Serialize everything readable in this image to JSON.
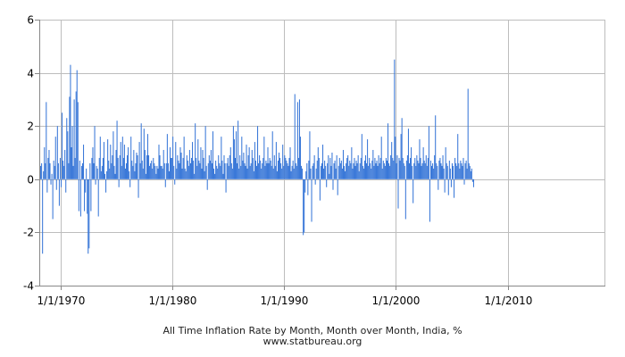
{
  "chart_data": {
    "type": "bar",
    "title": "All Time Inflation Rate by Month, Month over Month, India, %",
    "source": "www.statbureau.org",
    "xlabel": "",
    "ylabel": "",
    "ylim": [
      -4,
      6
    ],
    "yticks": [
      -4,
      -2,
      0,
      2,
      4,
      6
    ],
    "x_range": [
      "1968-02",
      "2018-10"
    ],
    "xticks": [
      {
        "date": "1970-01",
        "label": "1/1/1970"
      },
      {
        "date": "1980-01",
        "label": "1/1/1980"
      },
      {
        "date": "1990-01",
        "label": "1/1/1990"
      },
      {
        "date": "2000-01",
        "label": "1/1/2000"
      },
      {
        "date": "2010-01",
        "label": "1/1/2010"
      }
    ],
    "grid": true,
    "bar_color": "#3a78d8",
    "axis_color": "#888888",
    "grid_color": "#bdbdbd",
    "series": [
      {
        "start": "1968-03",
        "values": [
          0.5,
          0.6,
          -2.8,
          0.3,
          1.2,
          0.6,
          2.9,
          -0.5,
          0.8,
          1.1,
          0.6,
          -0.2,
          0.2,
          -1.5,
          0.7,
          0.5,
          1.6,
          -0.4,
          2.0,
          0.6,
          -1.0,
          0.8,
          -0.3,
          2.5,
          0.7,
          0.5,
          1.1,
          -0.5,
          2.3,
          1.8,
          0.6,
          3.1,
          4.3,
          1.2,
          2.0,
          0.5,
          3.0,
          0.8,
          3.3,
          4.1,
          2.9,
          -1.2,
          0.7,
          -1.4,
          0.5,
          0.6,
          1.3,
          -1.2,
          -0.5,
          0.4,
          -1.3,
          -2.8,
          -2.6,
          0.6,
          -1.2,
          0.8,
          1.2,
          0.6,
          2.0,
          -0.2,
          0.5,
          0.4,
          -1.4,
          0.8,
          1.6,
          0.3,
          0.5,
          0.8,
          1.4,
          0.2,
          -0.5,
          0.3,
          1.5,
          0.7,
          0.4,
          1.3,
          0.6,
          0.9,
          1.8,
          0.5,
          0.2,
          1.1,
          2.2,
          0.8,
          -0.3,
          0.9,
          1.4,
          0.5,
          1.6,
          0.8,
          1.3,
          0.4,
          0.6,
          0.9,
          1.2,
          0.3,
          -0.3,
          1.6,
          0.7,
          0.5,
          1.1,
          0.3,
          0.6,
          1.0,
          0.9,
          -0.7,
          1.4,
          0.6,
          2.1,
          0.7,
          0.4,
          1.9,
          1.1,
          0.2,
          0.9,
          1.7,
          0.9,
          0.5,
          0.6,
          0.7,
          0.4,
          0.8,
          0.6,
          0.5,
          0.2,
          0.5,
          0.4,
          1.3,
          0.9,
          0.5,
          0.5,
          0.4,
          1.1,
          0.6,
          -0.3,
          0.6,
          1.7,
          0.6,
          0.3,
          1.2,
          0.8,
          0.8,
          1.6,
          0.5,
          -0.2,
          1.4,
          0.4,
          0.9,
          0.7,
          0.6,
          1.2,
          1.0,
          0.4,
          0.8,
          1.6,
          0.4,
          0.3,
          0.9,
          0.7,
          0.5,
          1.1,
          0.6,
          0.8,
          1.4,
          0.7,
          0.2,
          2.1,
          0.8,
          0.5,
          1.5,
          0.7,
          0.6,
          1.2,
          0.4,
          1.1,
          0.8,
          0.3,
          2.0,
          0.5,
          -0.4,
          0.6,
          0.9,
          0.7,
          1.1,
          0.6,
          1.8,
          0.4,
          0.2,
          0.7,
          0.5,
          0.4,
          0.9,
          0.6,
          0.5,
          1.6,
          0.7,
          0.2,
          0.9,
          0.6,
          -0.5,
          0.6,
          0.8,
          0.5,
          0.9,
          1.2,
          0.6,
          0.4,
          2.0,
          1.5,
          0.8,
          1.8,
          0.6,
          2.2,
          0.4,
          0.9,
          0.5,
          1.6,
          0.7,
          1.0,
          0.6,
          0.5,
          1.3,
          0.4,
          0.9,
          1.2,
          0.5,
          0.6,
          1.1,
          0.8,
          0.3,
          1.4,
          0.7,
          0.5,
          2.0,
          0.6,
          0.9,
          0.7,
          0.4,
          0.6,
          0.8,
          1.6,
          0.5,
          0.7,
          0.6,
          1.2,
          0.6,
          0.8,
          0.7,
          0.5,
          1.8,
          0.4,
          0.9,
          0.5,
          1.4,
          0.3,
          0.7,
          1.0,
          0.8,
          0.6,
          0.4,
          1.3,
          0.5,
          0.9,
          0.8,
          0.7,
          0.6,
          0.5,
          0.8,
          1.2,
          0.3,
          0.5,
          0.7,
          0.4,
          3.2,
          0.6,
          0.5,
          2.9,
          0.8,
          3.0,
          1.6,
          0.5,
          0.4,
          -2.1,
          -2.0,
          -0.5,
          0.3,
          0.6,
          -0.6,
          0.7,
          1.8,
          0.4,
          -1.6,
          0.5,
          0.6,
          0.9,
          -0.2,
          0.4,
          0.7,
          1.2,
          0.8,
          -0.8,
          0.5,
          0.6,
          1.3,
          0.4,
          0.7,
          0.5,
          -0.3,
          0.6,
          0.9,
          0.2,
          0.8,
          0.5,
          1.0,
          -0.4,
          0.6,
          0.7,
          0.4,
          0.9,
          -0.6,
          0.5,
          0.8,
          0.6,
          0.7,
          0.4,
          1.1,
          0.5,
          0.3,
          0.6,
          0.8,
          0.9,
          0.5,
          0.7,
          0.6,
          1.2,
          0.4,
          0.6,
          0.8,
          0.5,
          0.7,
          0.6,
          0.9,
          0.3,
          0.6,
          0.8,
          1.7,
          0.5,
          0.4,
          0.7,
          0.9,
          0.6,
          1.5,
          0.5,
          0.8,
          0.6,
          0.4,
          0.7,
          1.1,
          0.5,
          0.8,
          0.6,
          0.7,
          0.5,
          0.9,
          0.6,
          0.8,
          1.6,
          0.4,
          0.7,
          0.6,
          0.5,
          0.8,
          0.7,
          2.1,
          0.6,
          0.5,
          0.9,
          1.4,
          0.8,
          0.7,
          4.5,
          1.6,
          0.6,
          0.9,
          -1.1,
          0.8,
          0.7,
          1.7,
          2.3,
          0.8,
          0.6,
          0.5,
          -1.5,
          0.7,
          0.9,
          1.9,
          0.6,
          0.8,
          1.2,
          0.5,
          -0.9,
          0.6,
          0.8,
          0.5,
          0.9,
          0.7,
          0.6,
          1.5,
          0.8,
          0.5,
          0.6,
          1.2,
          0.7,
          0.6,
          0.9,
          0.5,
          0.8,
          2.0,
          -1.6,
          0.7,
          0.5,
          0.6,
          0.4,
          0.9,
          2.4,
          0.6,
          0.5,
          -0.4,
          0.7,
          0.8,
          0.6,
          0.5,
          0.9,
          0.4,
          -0.5,
          1.2,
          0.6,
          0.5,
          -0.6,
          0.7,
          0.4,
          -0.3,
          0.6,
          0.5,
          -0.7,
          0.8,
          0.6,
          0.5,
          1.7,
          0.6,
          0.4,
          0.7,
          0.6,
          0.5,
          0.8,
          -0.2,
          0.6,
          0.7,
          0.4,
          3.4,
          0.6,
          0.5,
          0.3,
          0.4,
          -0.1,
          -0.3
        ]
      }
    ]
  }
}
